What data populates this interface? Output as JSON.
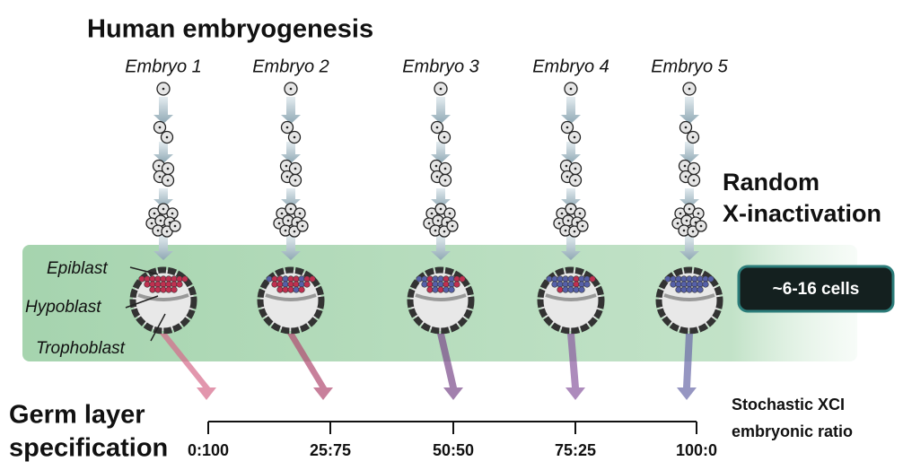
{
  "header": {
    "title": "Human embryogenesis"
  },
  "embryos": [
    {
      "label": "Embryo 1"
    },
    {
      "label": "Embryo 2"
    },
    {
      "label": "Embryo 3"
    },
    {
      "label": "Embryo 4"
    },
    {
      "label": "Embryo 5"
    }
  ],
  "annotations": {
    "random_xi": [
      "Random",
      "X-inactivation"
    ],
    "cells": "~6-16 cells"
  },
  "cell_types": [
    "Epiblast",
    "Hypoblast",
    "Trophoblast"
  ],
  "axis": {
    "title": [
      "Germ layer",
      "specification"
    ],
    "ticks": [
      "0:100",
      "25:75",
      "50:50",
      "75:25",
      "100:0"
    ],
    "label": [
      "Stochastic XCI",
      "embryonic ratio"
    ]
  }
}
